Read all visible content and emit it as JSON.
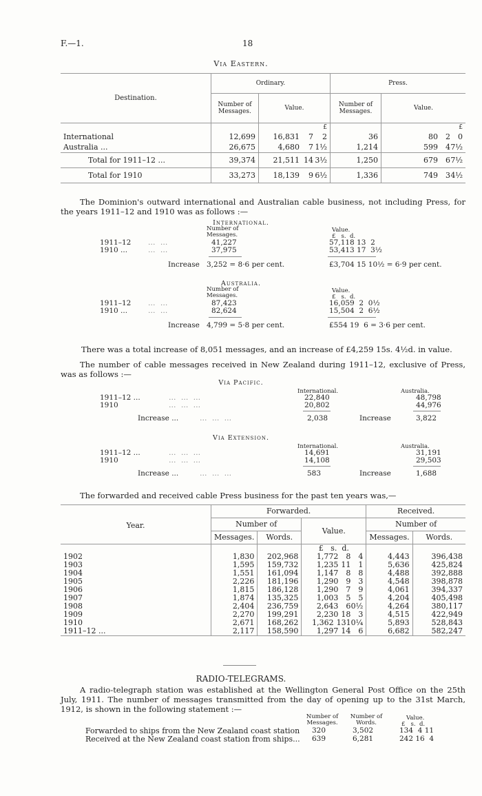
{
  "header": {
    "ref": "F.—1.",
    "page": "18"
  },
  "eastern": {
    "title": "Via Eastern.",
    "cols": {
      "destination": "Destination.",
      "ordinary": "Ordinary.",
      "press": "Press.",
      "num_msgs": "Number of Messages.",
      "value": "Value.",
      "lsd": [
        "£",
        "s.",
        "d."
      ]
    },
    "rows": [
      {
        "label": "International",
        "ord_msgs": "12,699",
        "ord_l": "16,831",
        "ord_s": "7",
        "ord_d": "2",
        "pr_msgs": "36",
        "pr_l": "80",
        "pr_s": "2",
        "pr_d": "0"
      },
      {
        "label": "Australia ...",
        "ord_msgs": "26,675",
        "ord_l": "4,680",
        "ord_s": "7",
        "ord_d": "1½",
        "pr_msgs": "1,214",
        "pr_l": "599",
        "pr_s": "4",
        "pr_d": "7½"
      },
      {
        "label": "Total for 1911–12 ...",
        "ord_msgs": "39,374",
        "ord_l": "21,511",
        "ord_s": "14",
        "ord_d": "3½",
        "pr_msgs": "1,250",
        "pr_l": "679",
        "pr_s": "6",
        "pr_d": "7½"
      },
      {
        "label": "Total for 1910",
        "ord_msgs": "33,273",
        "ord_l": "18,139",
        "ord_s": "9",
        "ord_d": "6½",
        "pr_msgs": "1,336",
        "pr_l": "749",
        "pr_s": "3",
        "pr_d": "4½"
      }
    ]
  },
  "para1": "The Dominion's outward international and Australian cable business, not including Press, for the years 1911–12 and 1910 was as follows :—",
  "outward": [
    {
      "title": "International.",
      "msgs_head": "Number of Messages.",
      "val_head": "Value.",
      "lsd": "£   s.  d.",
      "rows": [
        {
          "year": "1911–12",
          "msgs": "41,227",
          "value": "57,118 13  2"
        },
        {
          "year": "1910 ...",
          "msgs": "37,975",
          "value": "53,413 17  3½"
        }
      ],
      "increase_label": "Increase",
      "increase_msgs": "3,252 = 8·6 per cent.",
      "increase_value": "£3,704 15 10½ = 6·9 per cent."
    },
    {
      "title": "Australia.",
      "msgs_head": "Number of Messages.",
      "val_head": "Value.",
      "lsd": "£   s.  d.",
      "rows": [
        {
          "year": "1911–12",
          "msgs": "87,423",
          "value": "16,059  2  0½"
        },
        {
          "year": "1910 ...",
          "msgs": "82,624",
          "value": "15,504  2  6½"
        }
      ],
      "increase_label": "Increase",
      "increase_msgs": "4,799 = 5·8 per cent.",
      "increase_value": "£554 19  6 = 3·6 per cent."
    }
  ],
  "total_increase": "There was a total increase of 8,051 messages, and an increase of £4,259 15s. 4½d. in value.",
  "para2": "The number of cable messages received in New Zealand during 1911–12, exclusive of Press, was as follows :—",
  "received": [
    {
      "title": "Via Pacific.",
      "col1": "International.",
      "col2": "Australia.",
      "rows": [
        {
          "year": "1911–12 ...",
          "intl": "22,840",
          "aus": "48,798"
        },
        {
          "year": "1910",
          "intl": "20,802",
          "aus": "44,976"
        }
      ],
      "increase_label": "Increase ...",
      "intl_increase": "2,038",
      "aus_increase_label": "Increase",
      "aus_increase": "3,822"
    },
    {
      "title": "Via Extension.",
      "col1": "International.",
      "col2": "Australia.",
      "rows": [
        {
          "year": "1911–12 ...",
          "intl": "14,691",
          "aus": "31,191"
        },
        {
          "year": "1910",
          "intl": "14,108",
          "aus": "29,503"
        }
      ],
      "increase_label": "Increase ...",
      "intl_increase": "583",
      "aus_increase_label": "Increase",
      "aus_increase": "1,688"
    }
  ],
  "para3": "The forwarded and received cable Press business for the past ten years was,—",
  "press": {
    "cols": {
      "year": "Year.",
      "forwarded": "Forwarded.",
      "received": "Received.",
      "number_of": "Number of",
      "messages": "Messages.",
      "words": "Words.",
      "value": "Value.",
      "lsd": "£   s.  d."
    },
    "rows": [
      [
        "1902",
        "1,830",
        "202,968",
        "1,772",
        "8",
        "4",
        "4,443",
        "396,438"
      ],
      [
        "1903",
        "1,595",
        "159,732",
        "1,235",
        "11",
        "1",
        "5,636",
        "425,824"
      ],
      [
        "1904",
        "1,551",
        "161,094",
        "1,147",
        "8",
        "8",
        "4,488",
        "392,888"
      ],
      [
        "1905",
        "2,226",
        "181,196",
        "1,290",
        "9",
        "3",
        "4,548",
        "398,878"
      ],
      [
        "1906",
        "1,815",
        "186,128",
        "1,290",
        "7",
        "9",
        "4,061",
        "394,337"
      ],
      [
        "1907",
        "1,874",
        "135,325",
        "1,003",
        "5",
        "5",
        "4,204",
        "405,498"
      ],
      [
        "1908",
        "2,404",
        "236,759",
        "2,643",
        "6",
        "0½",
        "4,264",
        "380,117"
      ],
      [
        "1909",
        "2,270",
        "199,291",
        "2,230",
        "18",
        "3",
        "4,515",
        "422,949"
      ],
      [
        "1910",
        "2,671",
        "168,262",
        "1,362",
        "13",
        "10¼",
        "5,893",
        "528,843"
      ],
      [
        "1911–12 ...",
        "2,117",
        "158,590",
        "1,297",
        "14",
        "6",
        "6,682",
        "582,247"
      ]
    ]
  },
  "radio": {
    "title": "RADIO-TELEGRAMS.",
    "para": "A radio-telegraph station was established at the Wellington General Post Office on the 25th July, 1911. The number of messages transmitted from the day of opening up to the 31st March, 1912, is shown in the following statement :—",
    "cols": {
      "msgs": "Number of Messages.",
      "words": "Number of Words.",
      "value": "Value.",
      "lsd": "£   s.  d."
    },
    "rows": [
      {
        "label": "Forwarded to ships from the New Zealand coast station",
        "msgs": "320",
        "words": "3,502",
        "value": "134  4 11"
      },
      {
        "label": "Received at the New Zealand coast station from ships...",
        "msgs": "639",
        "words": "6,281",
        "value": "242 16  4"
      }
    ]
  }
}
